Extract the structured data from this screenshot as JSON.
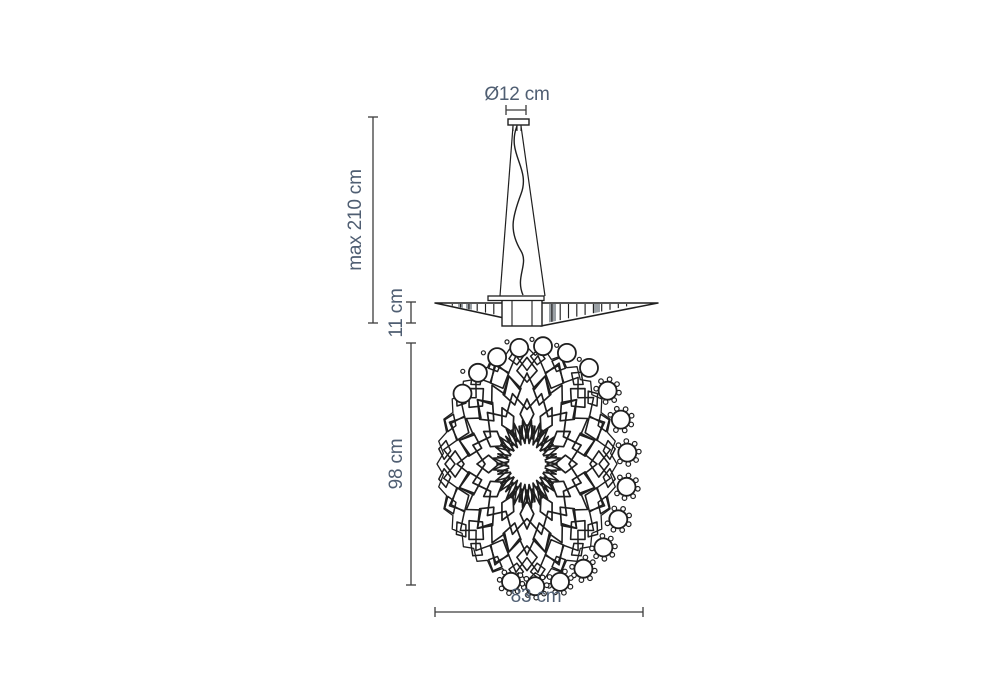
{
  "diagram": {
    "type": "technical-dimension-drawing",
    "subject": "pendant lamp suspension",
    "background": "#ffffff",
    "line_color": "#1f1f1f",
    "dim_color": "#3c3c3c",
    "label_color": "#4f5e72",
    "shade_gray": "#9aa0a5",
    "labels": {
      "canopy_diameter": "Ø12 cm",
      "max_drop_height": "max 210 cm",
      "diffuser_side_height": "11 cm",
      "diffuser_front_height": "98 cm",
      "diffuser_front_width": "83 cm"
    }
  }
}
